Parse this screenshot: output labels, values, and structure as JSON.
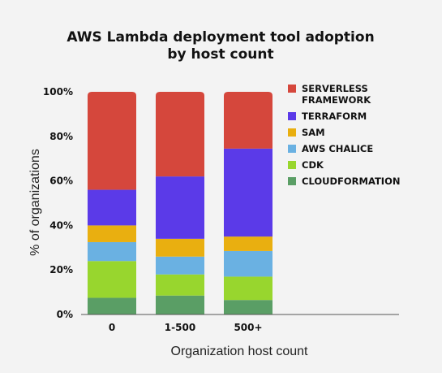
{
  "chart_data": {
    "type": "bar",
    "stacked": true,
    "title_lines": [
      "AWS Lambda deployment tool adoption",
      "by host count"
    ],
    "xlabel": "Organization host count",
    "ylabel": "% of organizations",
    "ylim": [
      0,
      100
    ],
    "yticks": [
      0,
      20,
      40,
      60,
      80,
      100
    ],
    "ytick_labels": [
      "0%",
      "20%",
      "40%",
      "60%",
      "80%",
      "100%"
    ],
    "categories": [
      "0",
      "1-500",
      "500+"
    ],
    "series": [
      {
        "name": "CLOUDFORMATION",
        "color": "#5a9e65",
        "values": [
          7.5,
          8.5,
          6.5
        ]
      },
      {
        "name": "CDK",
        "color": "#98d62e",
        "values": [
          16.5,
          9.5,
          10.5
        ]
      },
      {
        "name": "AWS CHALICE",
        "color": "#6ab1e2",
        "values": [
          8.5,
          8,
          11.5
        ]
      },
      {
        "name": "SAM",
        "color": "#e9af10",
        "values": [
          7.5,
          8,
          6.5
        ]
      },
      {
        "name": "TERRAFORM",
        "color": "#5b3ae8",
        "values": [
          16,
          28,
          39.5
        ]
      },
      {
        "name": "SERVERLESS FRAMEWORK",
        "color": "#d5473c",
        "values": [
          44,
          38,
          25.5
        ]
      }
    ],
    "legend_entries": [
      {
        "lines": [
          "SERVERLESS",
          "FRAMEWORK"
        ],
        "color": "#d5473c"
      },
      {
        "lines": [
          "TERRAFORM"
        ],
        "color": "#5b3ae8"
      },
      {
        "lines": [
          "SAM"
        ],
        "color": "#e9af10"
      },
      {
        "lines": [
          "AWS CHALICE"
        ],
        "color": "#6ab1e2"
      },
      {
        "lines": [
          "CDK"
        ],
        "color": "#98d62e"
      },
      {
        "lines": [
          "CLOUDFORMATION"
        ],
        "color": "#5a9e65"
      }
    ],
    "legend_position": "right",
    "grid": false
  }
}
